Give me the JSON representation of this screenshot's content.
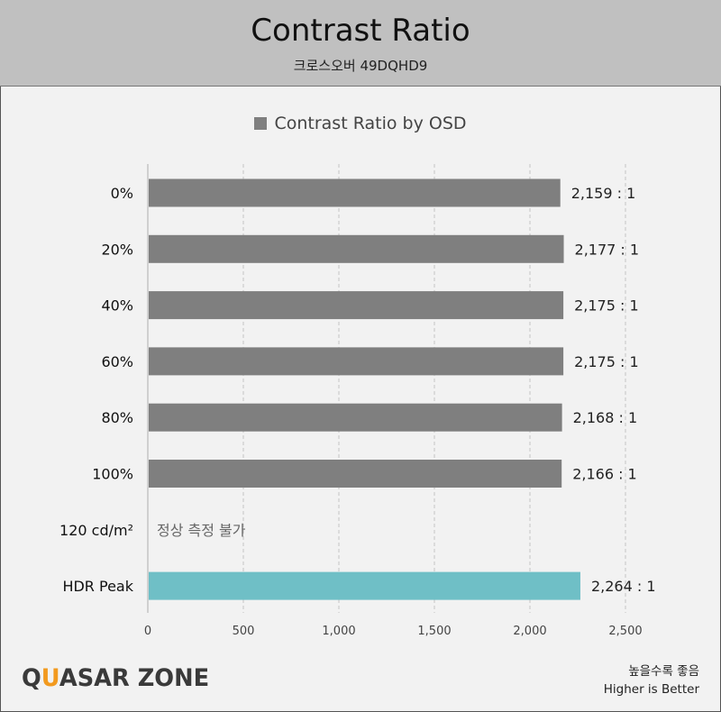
{
  "header": {
    "title": "Contrast Ratio",
    "subtitle": "크로스오버 49DQHD9"
  },
  "chart_data": {
    "type": "bar",
    "orientation": "horizontal",
    "title": "Contrast Ratio",
    "legend": [
      "Contrast Ratio by OSD"
    ],
    "legend_placement": "top",
    "categories": [
      "0%",
      "20%",
      "40%",
      "60%",
      "80%",
      "100%",
      "120 cd/m²",
      "HDR Peak"
    ],
    "values": [
      2159,
      2177,
      2175,
      2175,
      2168,
      2166,
      null,
      2264
    ],
    "data_labels": [
      "2,159 : 1",
      "2,177 : 1",
      "2,175 : 1",
      "2,175 : 1",
      "2,168 : 1",
      "2,166 : 1",
      "정상 측정 불가",
      "2,264 : 1"
    ],
    "colors": [
      "#7f7f7f",
      "#7f7f7f",
      "#7f7f7f",
      "#7f7f7f",
      "#7f7f7f",
      "#7f7f7f",
      "#7f7f7f",
      "#6fbfc6"
    ],
    "xlim": [
      0,
      2500
    ],
    "xticks": [
      0,
      500,
      1000,
      1500,
      2000,
      2500
    ],
    "xtick_labels": [
      "0",
      "500",
      "1,000",
      "1,500",
      "2,000",
      "2,500"
    ],
    "grid": "vertical dashed"
  },
  "footer": {
    "logo_left": "Q",
    "logo_accent": "U",
    "logo_right": "ASAR ZONE",
    "note_ko": "높을수록 좋음",
    "note_en": "Higher is Better"
  }
}
